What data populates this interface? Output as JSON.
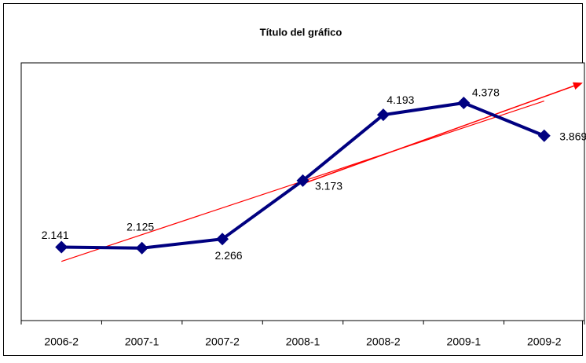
{
  "chart_data": {
    "type": "line",
    "title": "Título del gráfico",
    "categories": [
      "2006-2",
      "2007-1",
      "2007-2",
      "2008-1",
      "2008-2",
      "2009-1",
      "2009-2"
    ],
    "series": [
      {
        "color": "#000080",
        "values": [
          2.141,
          2.125,
          2.266,
          3.173,
          4.193,
          4.378,
          3.869
        ]
      }
    ],
    "ylim": [
      1,
      5
    ],
    "trendline": true,
    "trendline_color": "#ff0000"
  }
}
